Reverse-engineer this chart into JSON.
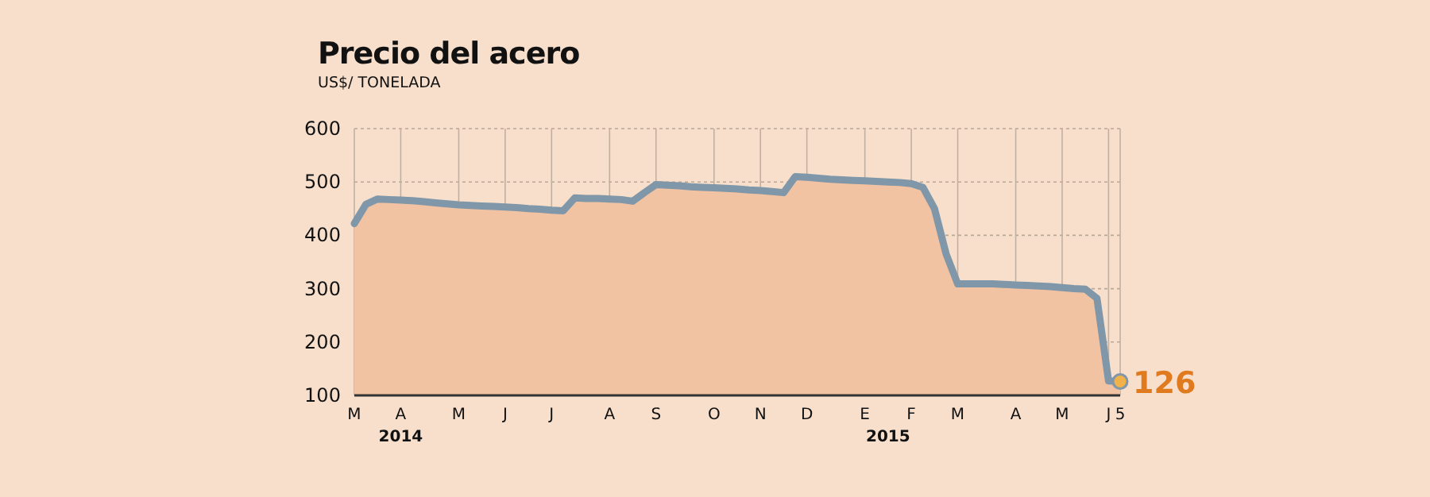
{
  "chart_data": {
    "type": "line",
    "title": "Precio del acero",
    "subtitle": "US$/ TONELADA",
    "categories": [
      "M",
      null,
      null,
      null,
      "A",
      null,
      null,
      null,
      null,
      "M",
      null,
      null,
      null,
      "J",
      null,
      null,
      null,
      "J",
      null,
      null,
      null,
      null,
      "A",
      null,
      null,
      null,
      "S",
      null,
      null,
      null,
      null,
      "O",
      null,
      null,
      null,
      "N",
      null,
      null,
      null,
      "D",
      null,
      null,
      null,
      null,
      "E",
      null,
      null,
      null,
      "F",
      null,
      null,
      null,
      "M",
      null,
      null,
      null,
      null,
      "A",
      null,
      null,
      null,
      "M",
      null,
      null,
      null,
      "J",
      "5"
    ],
    "series": [
      {
        "type": "area",
        "color": "#f2c3a3",
        "values": [
          422,
          458,
          468,
          467,
          466,
          465,
          463,
          461,
          459,
          457,
          456,
          455,
          454,
          453,
          452,
          450,
          449,
          447,
          446,
          470,
          469,
          469,
          468,
          467,
          464,
          480,
          495,
          494,
          493,
          491,
          490,
          489,
          488,
          487,
          485,
          484,
          482,
          480,
          510,
          509,
          507,
          505,
          504,
          503,
          502,
          501,
          500,
          499,
          497,
          490,
          450,
          365,
          309,
          309,
          309,
          309,
          308,
          307,
          306,
          305,
          304,
          302,
          300,
          299,
          282,
          127,
          126
        ]
      },
      {
        "color": "#7f97a8",
        "values": [
          422,
          458,
          468,
          467,
          466,
          465,
          463,
          461,
          459,
          457,
          456,
          455,
          454,
          453,
          452,
          450,
          449,
          447,
          446,
          470,
          469,
          469,
          468,
          467,
          464,
          480,
          495,
          494,
          493,
          491,
          490,
          489,
          488,
          487,
          485,
          484,
          482,
          480,
          510,
          509,
          507,
          505,
          504,
          503,
          502,
          501,
          500,
          499,
          497,
          490,
          450,
          365,
          309,
          309,
          309,
          309,
          308,
          307,
          306,
          305,
          304,
          302,
          300,
          299,
          282,
          127,
          126
        ],
        "value_labels": [
          null,
          null,
          null,
          null,
          null,
          null,
          null,
          null,
          null,
          null,
          null,
          null,
          null,
          null,
          null,
          null,
          null,
          null,
          null,
          null,
          null,
          null,
          null,
          null,
          null,
          null,
          null,
          null,
          null,
          null,
          null,
          null,
          null,
          null,
          null,
          null,
          null,
          null,
          null,
          null,
          null,
          null,
          null,
          null,
          null,
          null,
          null,
          null,
          null,
          null,
          null,
          null,
          null,
          null,
          null,
          null,
          null,
          null,
          null,
          null,
          null,
          null,
          null,
          null,
          null,
          null,
          "126"
        ]
      }
    ],
    "ylim": [
      100,
      600
    ],
    "yticks": [
      100,
      200,
      300,
      400,
      500,
      600
    ],
    "grid": true,
    "annotations": [
      "2014",
      "2015"
    ]
  }
}
